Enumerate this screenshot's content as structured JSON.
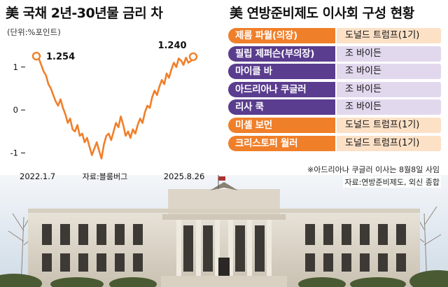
{
  "chart_title": "美 국채 2년-30년물 금리 차",
  "chart_unit": "(단위:%포인트)",
  "chart_data": {
    "type": "line",
    "title": "美 국채 2년-30년물 금리 차",
    "ylabel": "(단위:%포인트)",
    "xlabel": "",
    "x_tick_labels": [
      "2022.1.7",
      "2025.8.26"
    ],
    "y_ticks": [
      1,
      0,
      -1
    ],
    "ylim": [
      -1.35,
      1.55
    ],
    "grid": false,
    "legend": "none",
    "source": "자료:블룸버그",
    "annotations": [
      {
        "label": "1.254",
        "value": 1.254,
        "at": "start"
      },
      {
        "label": "1.240",
        "value": 1.24,
        "at": "end"
      }
    ],
    "series": [
      {
        "color": "#f07f2a",
        "values": [
          1.254,
          1.2,
          1.05,
          0.9,
          0.8,
          0.6,
          0.5,
          0.35,
          0.2,
          0.1,
          0.25,
          0.05,
          -0.1,
          -0.3,
          -0.2,
          -0.45,
          -0.5,
          -0.35,
          -0.6,
          -0.55,
          -0.75,
          -0.65,
          -0.85,
          -1.05,
          -0.9,
          -0.75,
          -0.95,
          -1.13,
          -0.8,
          -0.6,
          -0.55,
          -0.7,
          -0.5,
          -0.3,
          -0.4,
          -0.15,
          -0.35,
          -0.6,
          -0.5,
          -0.65,
          -0.45,
          -0.55,
          -0.35,
          -0.2,
          -0.3,
          -0.05,
          0.1,
          0.05,
          0.3,
          0.45,
          0.35,
          0.55,
          0.7,
          0.6,
          0.85,
          0.75,
          0.95,
          1.1,
          1.0,
          1.2,
          1.15,
          1.05,
          1.22,
          1.1,
          1.14,
          1.24
        ]
      }
    ]
  },
  "board_title": "美 연방준비제도 이사회 구성 현황",
  "board": [
    {
      "name": "제롬 파월(의장)",
      "appointed": "도널드 트럼프(1기)",
      "group": "trump"
    },
    {
      "name": "필립 제퍼슨(부의장)",
      "appointed": "조 바이든",
      "group": "biden"
    },
    {
      "name": "마이클 바",
      "appointed": "조 바이든",
      "group": "biden"
    },
    {
      "name": "아드리아나 쿠글러",
      "appointed": "조 바이든",
      "group": "biden"
    },
    {
      "name": "리사 쿡",
      "appointed": "조 바이든",
      "group": "biden"
    },
    {
      "name": "미셸 보먼",
      "appointed": "도널드 트럼프(1기)",
      "group": "trump"
    },
    {
      "name": "크리스토퍼 월러",
      "appointed": "도널드 트럼프(1기)",
      "group": "trump"
    }
  ],
  "board_note": "※아드리아나 쿠글러 이사는 8월8일 사임",
  "board_source": "자료:연방준비제도, 외신 종합"
}
